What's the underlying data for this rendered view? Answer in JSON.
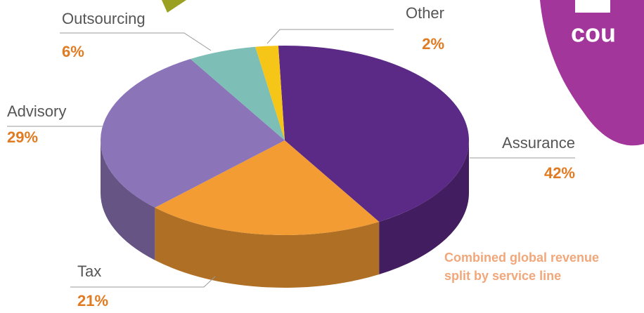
{
  "chart_data": {
    "type": "pie",
    "subtitle": [
      "Combined global revenue",
      "split by service line"
    ],
    "annotations": [
      "cou"
    ],
    "categories": [
      "Assurance",
      "Tax",
      "Advisory",
      "Outsourcing",
      "Other"
    ],
    "values": [
      42,
      21,
      29,
      6,
      2
    ],
    "value_labels": [
      "42%",
      "21%",
      "29%",
      "6%",
      "2%"
    ],
    "colors": [
      "#5b2a86",
      "#f39c34",
      "#8c74b8",
      "#7dbfb6",
      "#f5c518"
    ]
  }
}
